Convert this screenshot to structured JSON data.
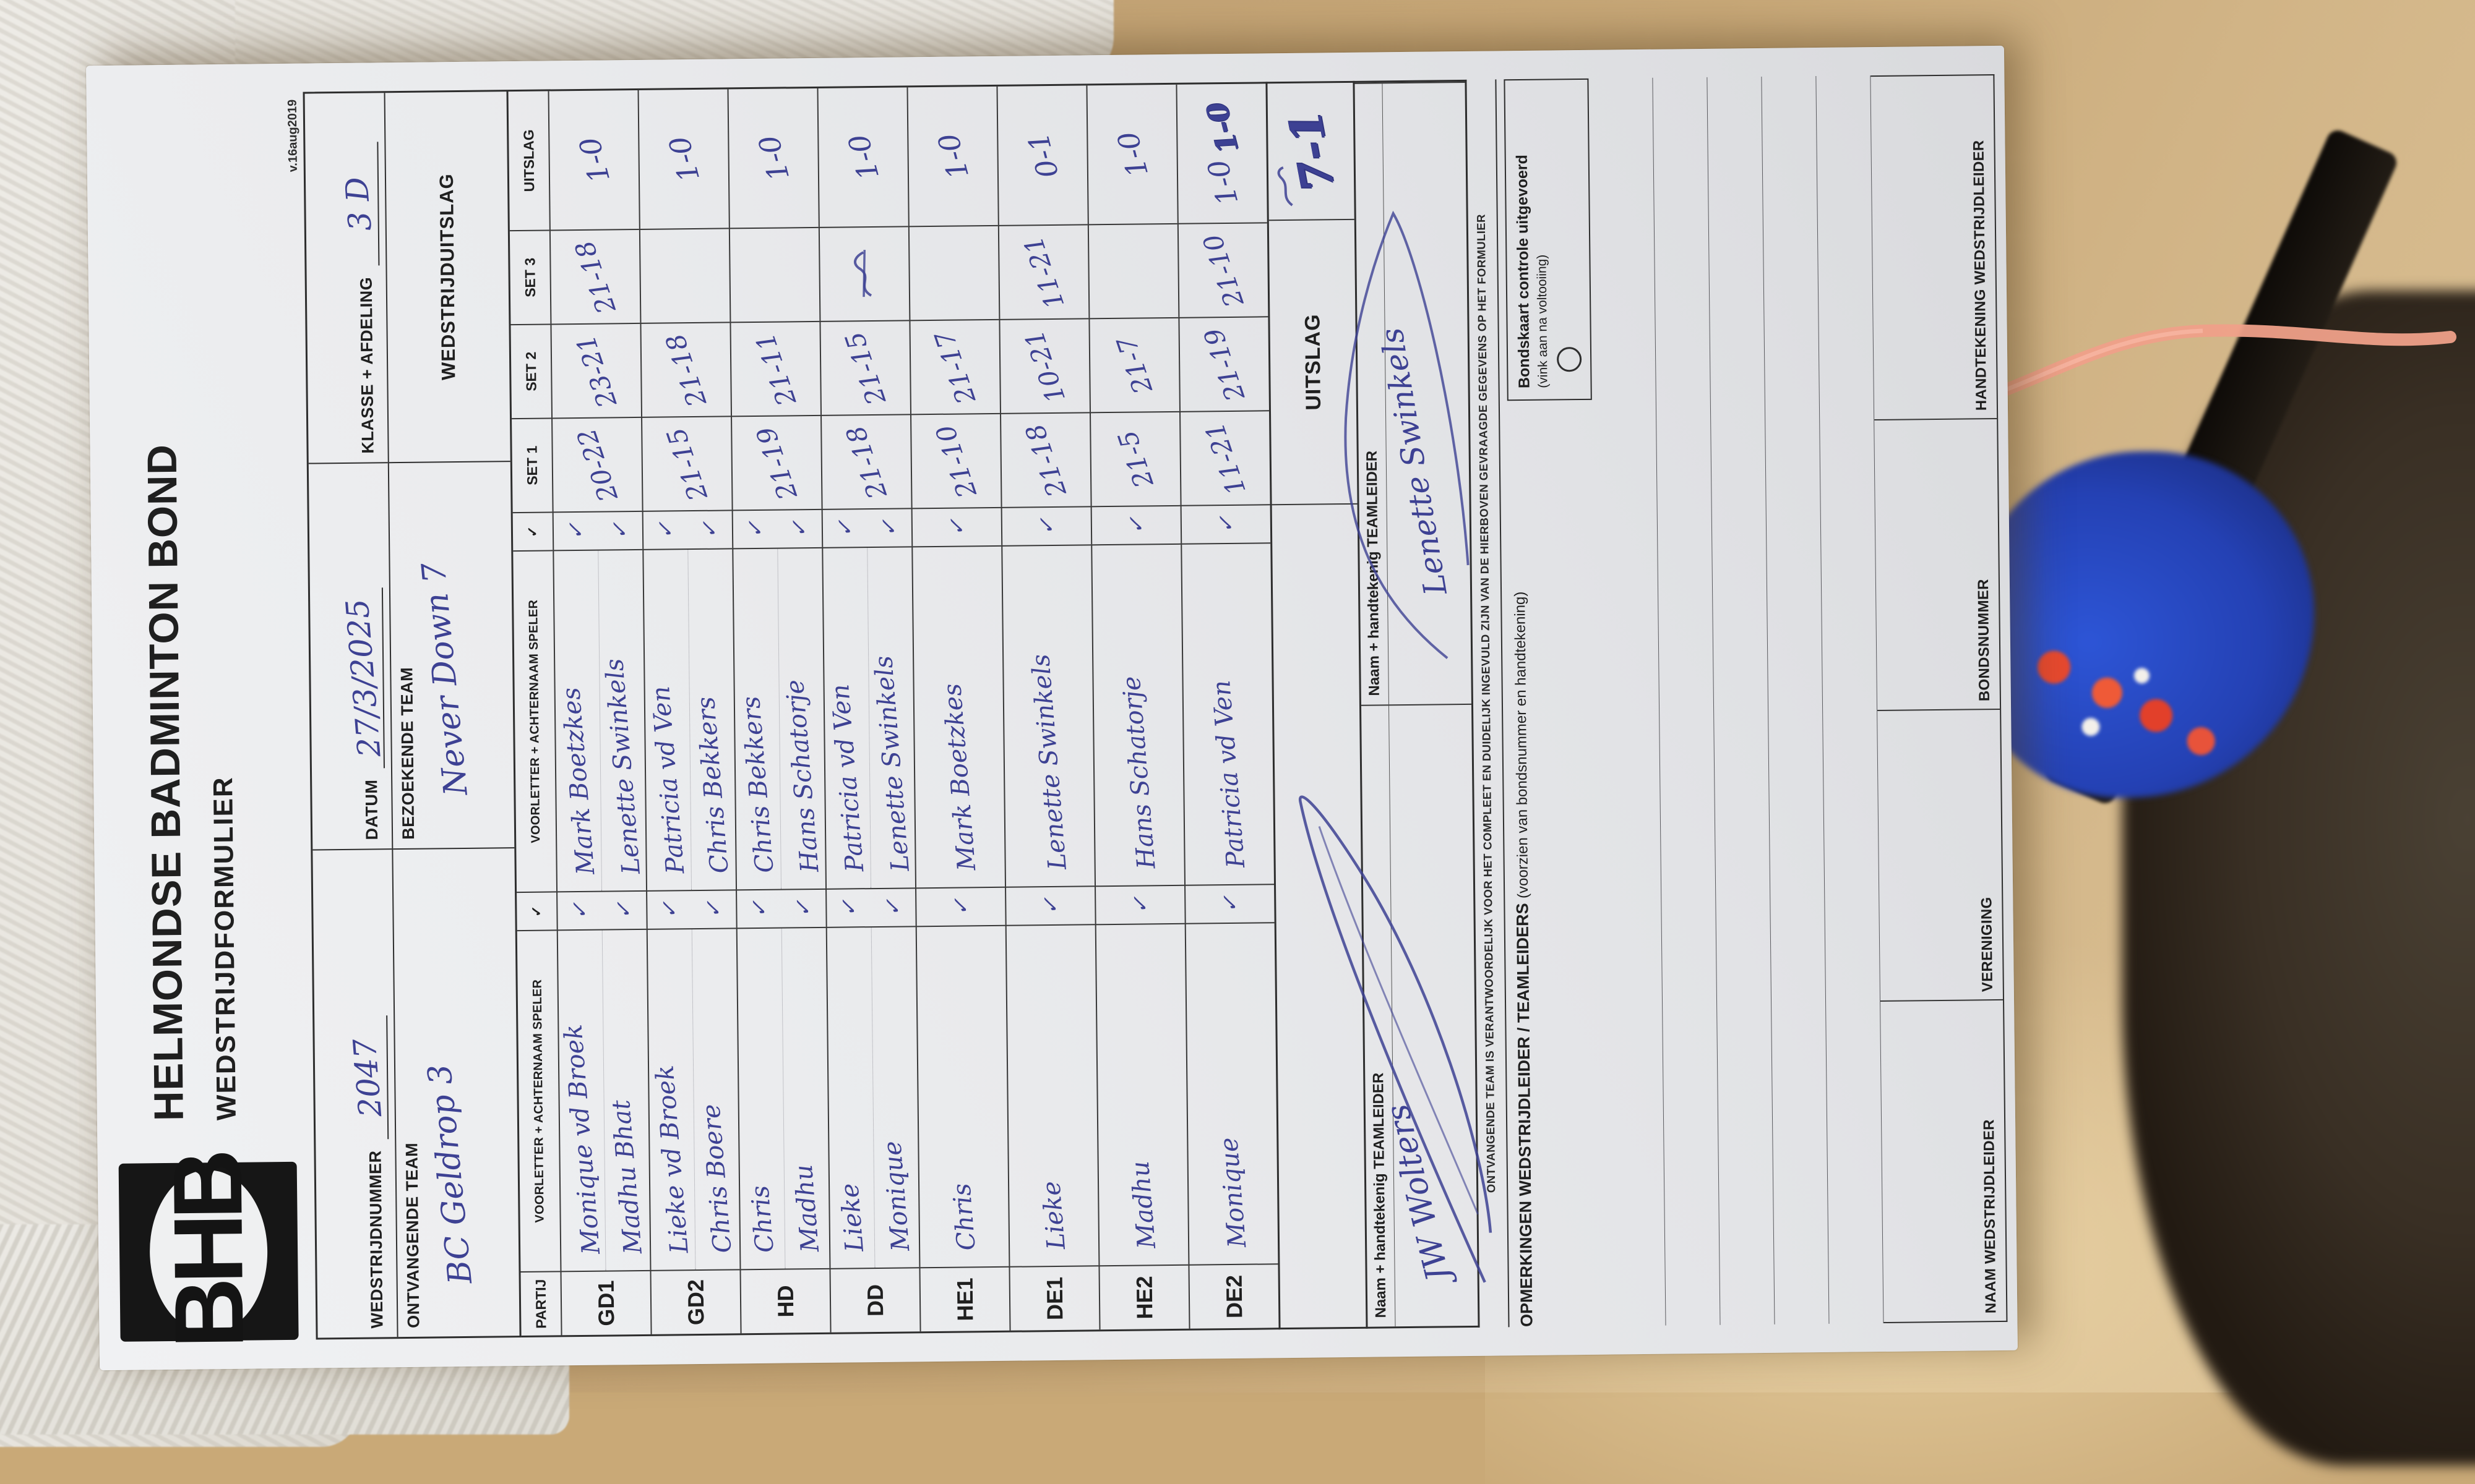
{
  "form": {
    "title": "HELMONDSE BADMINTON BOND",
    "subtitle": "WEDSTRIJDFORMULIER",
    "version": "v.16aug2019",
    "logo_letters": "BHB",
    "fields": {
      "wedstrijdnummer_label": "WEDSTRIJDNUMMER",
      "wedstrijdnummer_value": "2047",
      "datum_label": "DATUM",
      "datum_value": "27/3/2025",
      "klasse_label": "KLASSE + AFDELING",
      "klasse_value": "3 D",
      "ontvangende_label": "ONTVANGENDE TEAM",
      "ontvangende_value": "BC Geldrop 3",
      "bezoekende_label": "BEZOEKENDE TEAM",
      "bezoekende_value": "Never Down 7",
      "wedstrijduitslag_label": "WEDSTRIJDUITSLAG"
    }
  },
  "match_table": {
    "headers": {
      "partij": "PARTIJ",
      "speler": "VOORLETTER + ACHTERNAAM SPELER",
      "check": "✓",
      "set1": "SET 1",
      "set2": "SET 2",
      "set3": "SET 3",
      "uitslag": "UITSLAG"
    },
    "check_mark": "✓",
    "rows": [
      {
        "code": "GD1",
        "home": [
          "Monique vd Broek",
          "Madhu Bhat"
        ],
        "away": [
          "Mark Boetzkes",
          "Lenette Swinkels"
        ],
        "sets": [
          "20-22",
          "23-21",
          "21-18"
        ],
        "uitslag": "1-0"
      },
      {
        "code": "GD2",
        "home": [
          "Lieke vd Broek",
          "Chris Boere"
        ],
        "away": [
          "Patricia vd Ven",
          "Chris Bekkers"
        ],
        "sets": [
          "21-15",
          "21-18",
          ""
        ],
        "uitslag": "1-0"
      },
      {
        "code": "HD",
        "home": [
          "Chris",
          "Madhu"
        ],
        "away": [
          "Chris Bekkers",
          "Hans Schatorje"
        ],
        "sets": [
          "21-19",
          "21-11",
          ""
        ],
        "uitslag": "1-0"
      },
      {
        "code": "DD",
        "home": [
          "Lieke",
          "Monique"
        ],
        "away": [
          "Patricia vd Ven",
          "Lenette Swinkels"
        ],
        "sets": [
          "21-18",
          "21-15",
          ""
        ],
        "set3_scribble": true,
        "uitslag": "1-0"
      },
      {
        "code": "HE1",
        "home": [
          "Chris"
        ],
        "away": [
          "Mark Boetzkes"
        ],
        "sets": [
          "21-10",
          "21-17",
          ""
        ],
        "uitslag": "1-0"
      },
      {
        "code": "DE1",
        "home": [
          "Lieke"
        ],
        "away": [
          "Lenette Swinkels"
        ],
        "sets": [
          "21-18",
          "10-21",
          "11-21"
        ],
        "uitslag": "0-1"
      },
      {
        "code": "HE2",
        "home": [
          "Madhu"
        ],
        "away": [
          "Hans Schatorje"
        ],
        "sets": [
          "21-5",
          "21-7",
          ""
        ],
        "uitslag": "1-0"
      },
      {
        "code": "DE2",
        "home": [
          "Monique"
        ],
        "away": [
          "Patricia vd Ven"
        ],
        "sets": [
          "11-21",
          "21-19",
          "21-10"
        ],
        "uitslag": "1-0",
        "uitslag_overwritten": true
      }
    ],
    "total_label": "UITSLAG",
    "total_value": "7-1"
  },
  "teamleider": {
    "box_label": "Naam + handtekenig TEAMLEIDER",
    "home_name": "JW Wolters",
    "away_name": "Lenette Swinkels"
  },
  "footer": {
    "responsibility": "ONTVANGENDE TEAM IS VERANTWOORDELIJK VOOR HET COMPLEET EN DUIDELIJK INGEVULD ZIJN VAN DE HIERBOVEN GEVRAAGDE GEGEVENS OP HET FORMULIER",
    "opmerkingen_bold": "OPMERKINGEN WEDSTRIJDLEIDER / TEAMLEIDERS",
    "opmerkingen_norm": "(voorzien van bondsnummer en handtekening)",
    "bondskaart_title": "Bondskaart controle uitgevoerd",
    "bondskaart_sub": "(vink aan na voltooiing)",
    "bottom_labels": [
      "NAAM WEDSTRIJDLEIDER",
      "VERENIGING",
      "BONDSNUMMER",
      "HANDTEKENING WEDSTRIJDLEIDER"
    ]
  },
  "colors": {
    "ink": "#3d4193",
    "ink_heavy": "#30347f",
    "paper": "#eaebed",
    "print": "#1f1f1f",
    "wood": "#c8a878",
    "fabric": "#e9e6e0",
    "shoe_blue": "#2441b4",
    "lace_orange": "#e8492f",
    "cable_salmon": "#efa089"
  }
}
